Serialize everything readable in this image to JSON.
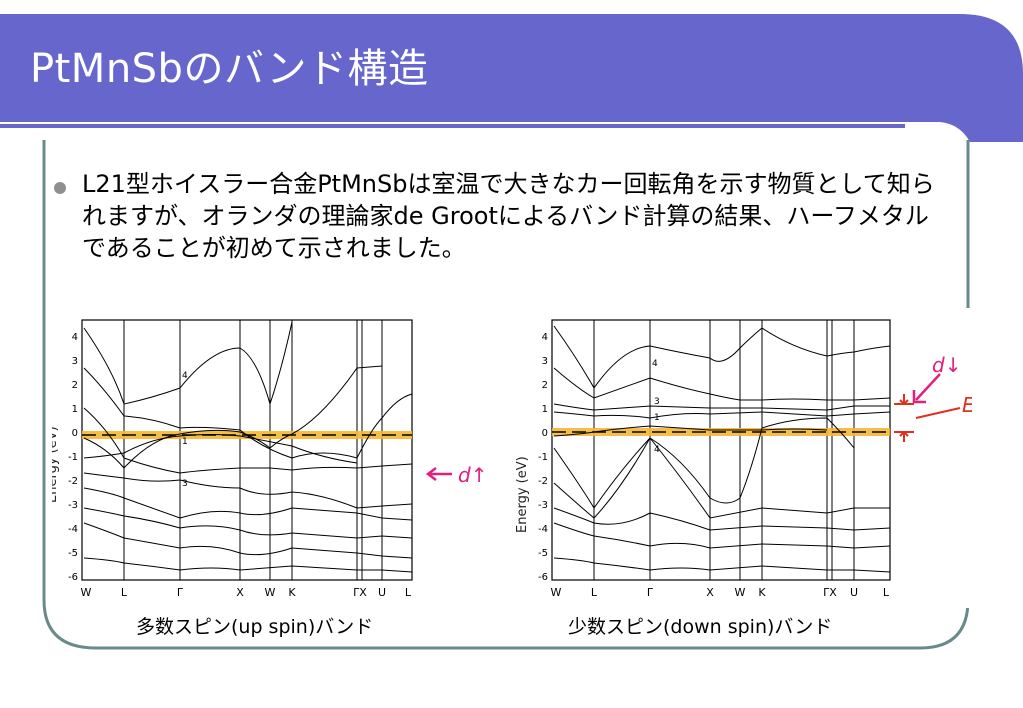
{
  "slide": {
    "title": "PtMnSbのバンド構造",
    "bullet": "L21型ホイスラー合金PtMnSbは室温で大きなカー回転角を示す物質として知られますが、オランダの理論家de Grootによるバンド計算の結果、ハーフメタルであることが初めて示されました。"
  },
  "figures": {
    "left": {
      "ylabel": "Energy (eV)",
      "yticks": [
        "4",
        "3",
        "2",
        "1",
        "0",
        "-1",
        "-2",
        "-3",
        "-4",
        "-5",
        "-6"
      ],
      "xticks": [
        "W",
        "L",
        "Γ",
        "X",
        "W",
        "K",
        "ΓX",
        "U",
        "L"
      ],
      "band_labels": [
        "4",
        "1",
        "3"
      ],
      "annotation": "d↑",
      "caption": "多数スピン(up spin)バンド"
    },
    "right": {
      "ylabel": "Energy (eV)",
      "yticks": [
        "4",
        "3",
        "2",
        "1",
        "0",
        "-1",
        "-2",
        "-3",
        "-4",
        "-5",
        "-6"
      ],
      "xticks": [
        "W",
        "L",
        "Γ",
        "X",
        "W",
        "K",
        "ΓX",
        "U",
        "L"
      ],
      "band_labels": [
        "4",
        "3",
        "1",
        "4"
      ],
      "annotation_d": "d↓",
      "annotation_gap": "Eg",
      "caption": "少数スピン(down spin)バンド"
    }
  },
  "colors": {
    "title_bar": "#6666cc",
    "fermi_highlight": "#f5b731",
    "annotation": "#e0207f",
    "gap_marker": "#e03020",
    "frame": "#6a8a8a"
  }
}
